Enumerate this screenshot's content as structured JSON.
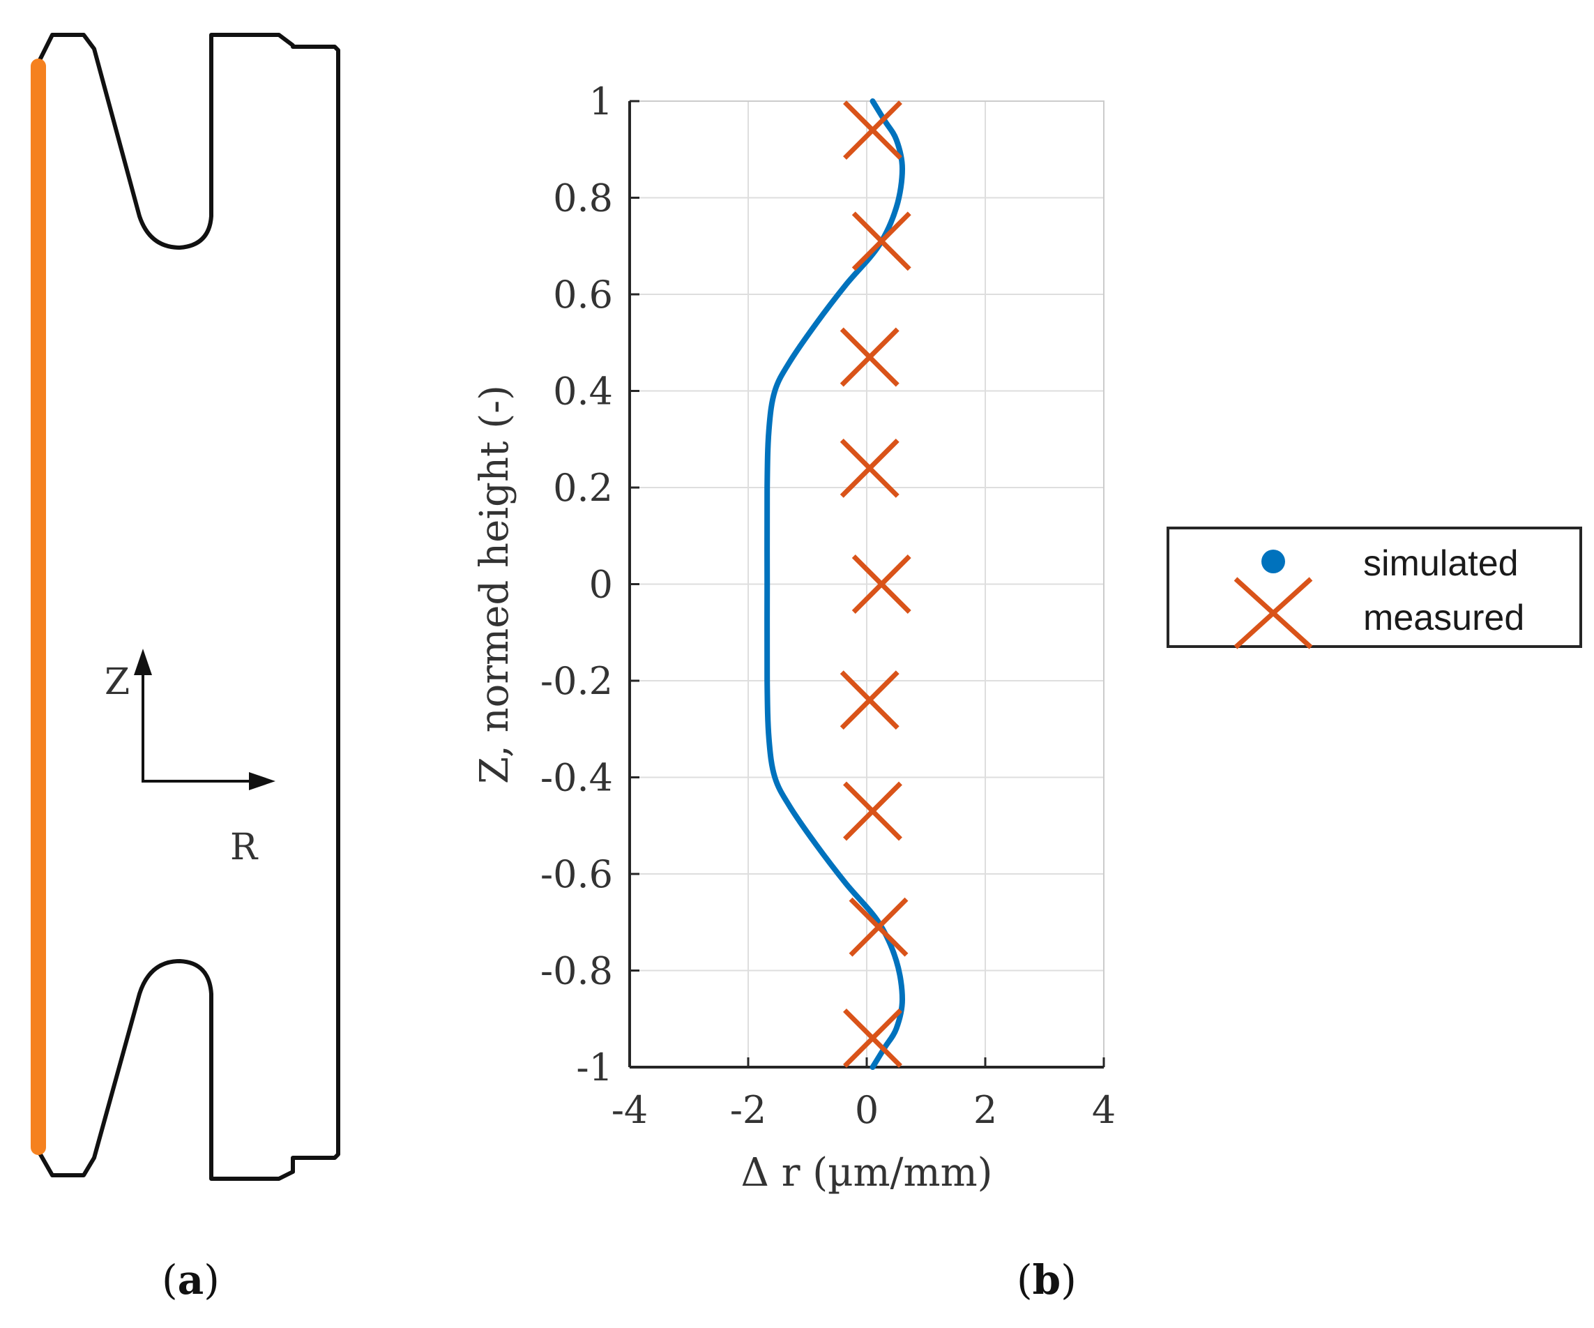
{
  "panels": {
    "a": {
      "label_open": "(",
      "label_letter": "a",
      "label_close": ")"
    },
    "b": {
      "label_open": "(",
      "label_letter": "b",
      "label_close": ")"
    }
  },
  "schematic": {
    "z_axis_label": "Z",
    "r_axis_label": "R",
    "inner_surface_color": "#F5811F",
    "outline_color": "#111111"
  },
  "chart_data": {
    "type": "line",
    "title": "",
    "xlabel": "Δ r (µm/mm)",
    "ylabel": "Z, normed height (-)",
    "xlim": [
      -4,
      4
    ],
    "ylim": [
      -1,
      1
    ],
    "xticks": [
      -4,
      -2,
      0,
      2,
      4
    ],
    "yticks": [
      1,
      0.8,
      0.6,
      0.4,
      0.2,
      0,
      -0.2,
      -0.4,
      -0.6,
      -0.8,
      -1
    ],
    "grid": true,
    "legend_position": "outside-right",
    "series": [
      {
        "name": "simulated",
        "kind": "line",
        "color": "#0072BD",
        "points": [
          [
            0.1,
            1.0
          ],
          [
            0.3,
            0.96
          ],
          [
            0.5,
            0.92
          ],
          [
            0.6,
            0.86
          ],
          [
            0.5,
            0.78
          ],
          [
            0.2,
            0.7
          ],
          [
            -0.35,
            0.62
          ],
          [
            -0.85,
            0.54
          ],
          [
            -1.3,
            0.46
          ],
          [
            -1.55,
            0.4
          ],
          [
            -1.65,
            0.32
          ],
          [
            -1.68,
            0.2
          ],
          [
            -1.68,
            0.0
          ],
          [
            -1.68,
            -0.2
          ],
          [
            -1.65,
            -0.32
          ],
          [
            -1.55,
            -0.4
          ],
          [
            -1.3,
            -0.46
          ],
          [
            -0.85,
            -0.54
          ],
          [
            -0.35,
            -0.62
          ],
          [
            0.2,
            -0.7
          ],
          [
            0.5,
            -0.78
          ],
          [
            0.6,
            -0.86
          ],
          [
            0.5,
            -0.92
          ],
          [
            0.3,
            -0.96
          ],
          [
            0.1,
            -1.0
          ]
        ]
      },
      {
        "name": "measured",
        "kind": "marker",
        "marker": "x",
        "color": "#D95319",
        "points": [
          [
            0.1,
            0.94
          ],
          [
            0.25,
            0.71
          ],
          [
            0.05,
            0.47
          ],
          [
            0.05,
            0.24
          ],
          [
            0.25,
            0.0
          ],
          [
            0.05,
            -0.24
          ],
          [
            0.1,
            -0.47
          ],
          [
            0.2,
            -0.71
          ],
          [
            0.1,
            -0.94
          ]
        ]
      }
    ]
  }
}
